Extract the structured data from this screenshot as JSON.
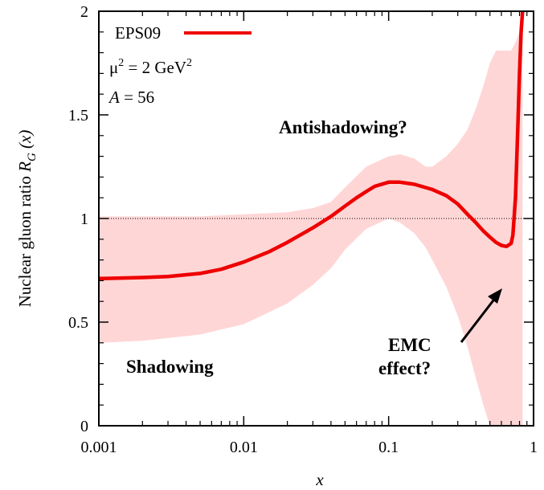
{
  "chart_data": {
    "type": "line",
    "title": "",
    "xlabel": "x",
    "ylabel": {
      "main": "Nuclear gluon ratio ",
      "symbol": "R",
      "sub": "G",
      "arg": " (x)"
    },
    "xscale": "log",
    "xlim": [
      0.001,
      1
    ],
    "ylim": [
      0,
      2
    ],
    "x_ticks": [
      0.001,
      0.01,
      0.1,
      1
    ],
    "x_tick_labels": [
      "0.001",
      "0.01",
      "0.1",
      "1"
    ],
    "y_ticks": [
      0,
      0.5,
      1,
      1.5,
      2
    ],
    "y_tick_labels": [
      "0",
      "0.5",
      "1",
      "1.5",
      "2"
    ],
    "grid": false,
    "legend": {
      "position": "top-left",
      "series_label": "EPS09",
      "mu_line": {
        "prefix": "μ",
        "sup1": "2",
        "mid": " = 2 GeV",
        "sup2": "2"
      },
      "a_line": {
        "symbol": "A",
        "rest": " = 56"
      }
    },
    "reference_line": {
      "y": 1,
      "style": "dotted"
    },
    "series": [
      {
        "name": "EPS09",
        "color": "#ee0000",
        "x": [
          0.001,
          0.002,
          0.003,
          0.005,
          0.007,
          0.01,
          0.015,
          0.02,
          0.03,
          0.04,
          0.05,
          0.06,
          0.07,
          0.08,
          0.1,
          0.12,
          0.15,
          0.2,
          0.25,
          0.3,
          0.35,
          0.4,
          0.45,
          0.5,
          0.55,
          0.6,
          0.65,
          0.7,
          0.72,
          0.75,
          0.78,
          0.8,
          0.82,
          0.84
        ],
        "y": [
          0.71,
          0.715,
          0.72,
          0.735,
          0.755,
          0.79,
          0.84,
          0.885,
          0.955,
          1.01,
          1.06,
          1.1,
          1.13,
          1.155,
          1.175,
          1.175,
          1.165,
          1.14,
          1.11,
          1.07,
          1.02,
          0.98,
          0.94,
          0.91,
          0.885,
          0.87,
          0.865,
          0.88,
          0.92,
          1.1,
          1.45,
          1.7,
          1.9,
          2.0
        ]
      }
    ],
    "uncertainty_band": {
      "color": "#ffd6d6",
      "x": [
        0.001,
        0.002,
        0.005,
        0.01,
        0.02,
        0.03,
        0.04,
        0.05,
        0.07,
        0.1,
        0.12,
        0.15,
        0.18,
        0.2,
        0.25,
        0.3,
        0.35,
        0.4,
        0.45,
        0.5,
        0.55,
        0.6,
        0.65,
        0.7,
        0.75,
        0.8,
        0.84
      ],
      "lower": [
        0.4,
        0.41,
        0.44,
        0.49,
        0.59,
        0.68,
        0.76,
        0.85,
        0.95,
        1.0,
        0.98,
        0.93,
        0.86,
        0.8,
        0.67,
        0.53,
        0.38,
        0.23,
        0.1,
        0.0,
        0.0,
        0.0,
        0.0,
        0.0,
        0.0,
        0.0,
        0.0
      ],
      "upper": [
        1.01,
        1.01,
        1.01,
        1.02,
        1.03,
        1.05,
        1.08,
        1.15,
        1.25,
        1.3,
        1.31,
        1.29,
        1.25,
        1.25,
        1.3,
        1.36,
        1.43,
        1.53,
        1.64,
        1.75,
        1.81,
        1.81,
        1.81,
        1.81,
        1.85,
        1.9,
        1.95
      ]
    },
    "annotations": [
      {
        "text": "Antishadowing?"
      },
      {
        "text": "Shadowing"
      },
      {
        "text_lines": [
          "EMC",
          "effect?"
        ]
      }
    ]
  }
}
